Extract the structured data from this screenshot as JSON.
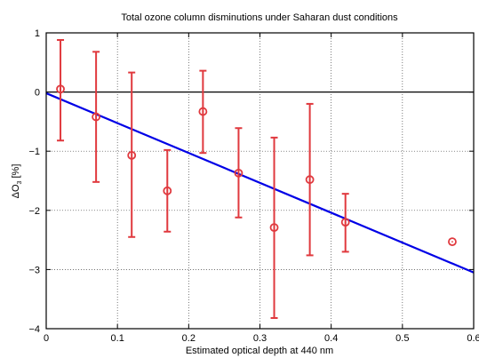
{
  "chart_data": {
    "type": "scatter",
    "title": "Total ozone column disminutions under Saharan dust conditions",
    "xlabel": "Estimated optical depth at 440 nm",
    "ylabel": {
      "prefix": "ΔO",
      "subscript": "3",
      "suffix": " [%]"
    },
    "xlim": [
      0,
      0.6
    ],
    "ylim": [
      -4,
      1
    ],
    "xticks": [
      "0",
      "0.1",
      "0.2",
      "0.3",
      "0.4",
      "0.5",
      "0.6"
    ],
    "yticks": [
      "1",
      "0",
      "−1",
      "−2",
      "−3",
      "−4"
    ],
    "grid": true,
    "points": [
      {
        "x": 0.02,
        "y": 0.05,
        "err_low": -0.82,
        "err_high": 0.88
      },
      {
        "x": 0.07,
        "y": -0.42,
        "err_low": -1.52,
        "err_high": 0.68
      },
      {
        "x": 0.12,
        "y": -1.07,
        "err_low": -2.45,
        "err_high": 0.33
      },
      {
        "x": 0.17,
        "y": -1.67,
        "err_low": -2.36,
        "err_high": -0.98
      },
      {
        "x": 0.22,
        "y": -0.33,
        "err_low": -1.03,
        "err_high": 0.36
      },
      {
        "x": 0.27,
        "y": -1.37,
        "err_low": -2.12,
        "err_high": -0.61
      },
      {
        "x": 0.32,
        "y": -2.29,
        "err_low": -3.82,
        "err_high": -0.77
      },
      {
        "x": 0.37,
        "y": -1.48,
        "err_low": -2.76,
        "err_high": -0.2
      },
      {
        "x": 0.42,
        "y": -2.2,
        "err_low": -2.7,
        "err_high": -1.72
      },
      {
        "x": 0.57,
        "y": -2.53
      }
    ],
    "fit_line": {
      "x": [
        0,
        0.6
      ],
      "y": [
        -0.02,
        -3.05
      ]
    },
    "zero_line": true,
    "colors": {
      "points": "#e0393e",
      "fit": "#0000e6",
      "grid": "#444444",
      "axis": "#000000"
    }
  }
}
